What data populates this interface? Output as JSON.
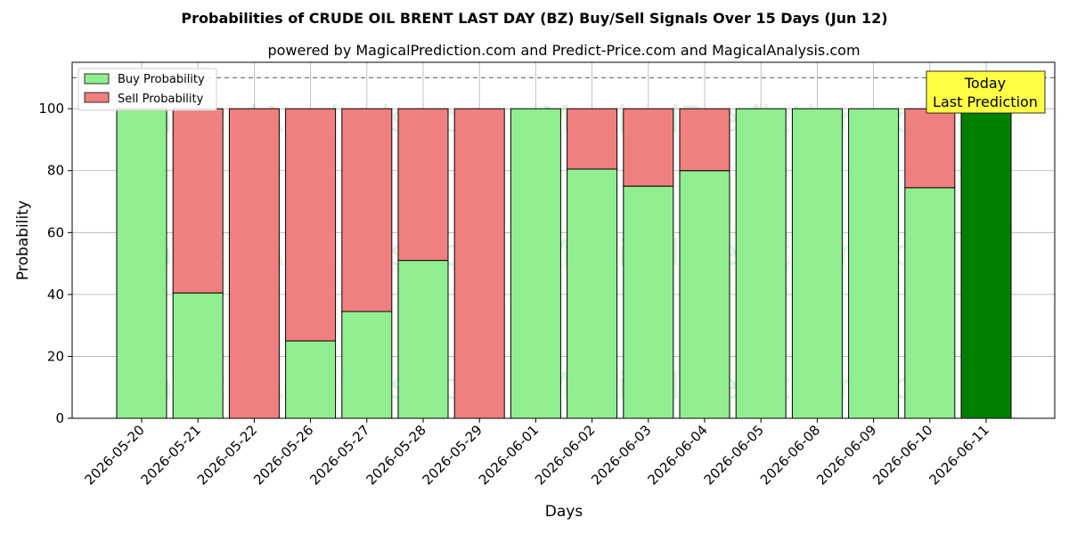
{
  "chart_data": {
    "type": "bar",
    "stacked": true,
    "title": "Probabilities of CRUDE OIL BRENT LAST DAY (BZ) Buy/Sell Signals Over 15 Days (Jun 12)",
    "subtitle": "powered by MagicalPrediction.com and Predict-Price.com and MagicalAnalysis.com",
    "xlabel": "Days",
    "ylabel": "Probability",
    "ylim": [
      0,
      115
    ],
    "yticks": [
      0,
      20,
      40,
      60,
      80,
      100
    ],
    "grid": true,
    "legend_position": "top-left",
    "reference_line": 110,
    "categories": [
      "2026-05-20",
      "2026-05-21",
      "2026-05-22",
      "2026-05-26",
      "2026-05-27",
      "2026-05-28",
      "2026-05-29",
      "2026-06-01",
      "2026-06-02",
      "2026-06-03",
      "2026-06-04",
      "2026-06-05",
      "2026-06-08",
      "2026-06-09",
      "2026-06-10",
      "2026-06-11"
    ],
    "series": [
      {
        "name": "Buy Probability",
        "color": "#90ee90",
        "values": [
          100,
          40.5,
          0,
          25,
          34.5,
          51,
          0,
          100,
          80.5,
          75,
          80,
          100,
          100,
          100,
          74.5,
          100
        ]
      },
      {
        "name": "Sell Probability",
        "color": "#f08080",
        "values": [
          0,
          59.5,
          100,
          75,
          65.5,
          49,
          100,
          0,
          19.5,
          25,
          20,
          0,
          0,
          0,
          25.5,
          0
        ]
      }
    ],
    "highlight": {
      "index": 15,
      "color": "#008000"
    },
    "annotation": {
      "line1": "Today",
      "line2": "Last Prediction",
      "color": "#ffff44"
    },
    "watermarks": [
      "MagicalAnalysis.com",
      "MagicalPrediction.com"
    ]
  }
}
